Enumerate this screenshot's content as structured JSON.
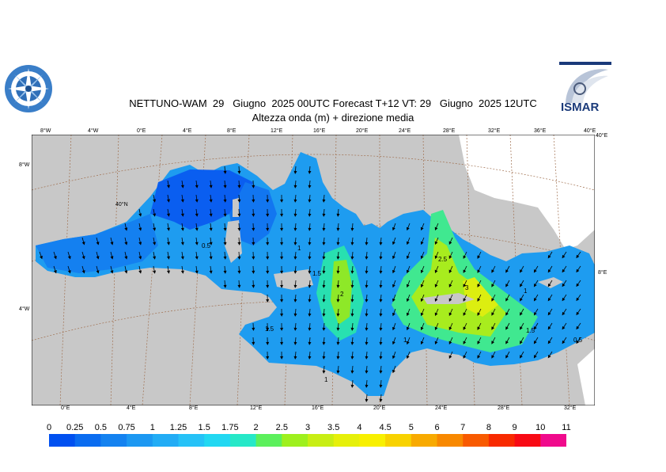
{
  "title_line1": "NETTUNO-WAM  29   Giugno  2025 00UTC Forecast T+12 VT: 29   Giugno  2025 12UTC",
  "title_line2": "Altezza onda (m) + direzione media",
  "logo_right_text": "ISMAR",
  "top_lon_labels": [
    "8°W",
    "4°W",
    "0°E",
    "4°E",
    "8°E",
    "12°E",
    "16°E",
    "20°E",
    "24°E",
    "28°E",
    "32°E",
    "36°E",
    "40°E"
  ],
  "bottom_lon_labels": [
    "0°E",
    "4°E",
    "8°E",
    "12°E",
    "16°E",
    "20°E",
    "24°E",
    "28°E",
    "32°E"
  ],
  "left_lat_labels": [
    "8°W",
    "4°W"
  ],
  "right_lat_labels": [
    "40°E",
    "8°E"
  ],
  "inner_lat_label": "40°N",
  "contour_labels": [
    "0.5",
    "1",
    "1.5",
    "2",
    "2.5",
    "3",
    "1.5",
    "1",
    "0.5",
    "1",
    "1.5",
    "1"
  ],
  "colorbar": {
    "levels": [
      "0",
      "0.25",
      "0.5",
      "0.75",
      "1",
      "1.25",
      "1.5",
      "1.75",
      "2",
      "2.5",
      "3",
      "3.5",
      "4",
      "4.5",
      "5",
      "6",
      "7",
      "8",
      "9",
      "10",
      "11"
    ],
    "colors": [
      "#0050f0",
      "#0a6cf0",
      "#1482f0",
      "#1c98f2",
      "#22acf5",
      "#26c2f7",
      "#22d8f2",
      "#26e8c8",
      "#5cf05c",
      "#9ef01e",
      "#c8ee14",
      "#e6f00a",
      "#f8f000",
      "#f8d200",
      "#f8aa00",
      "#f88800",
      "#f85a00",
      "#f82a00",
      "#f80a14",
      "#f00a8c"
    ]
  },
  "map_colors": {
    "land": "#c8c8c8",
    "land_east": "#ffffff",
    "sea_low": "#0a60ee",
    "sea_mid": "#1ea4f0",
    "sea_high": "#8ee828",
    "sea_peak": "#d8ee10"
  }
}
